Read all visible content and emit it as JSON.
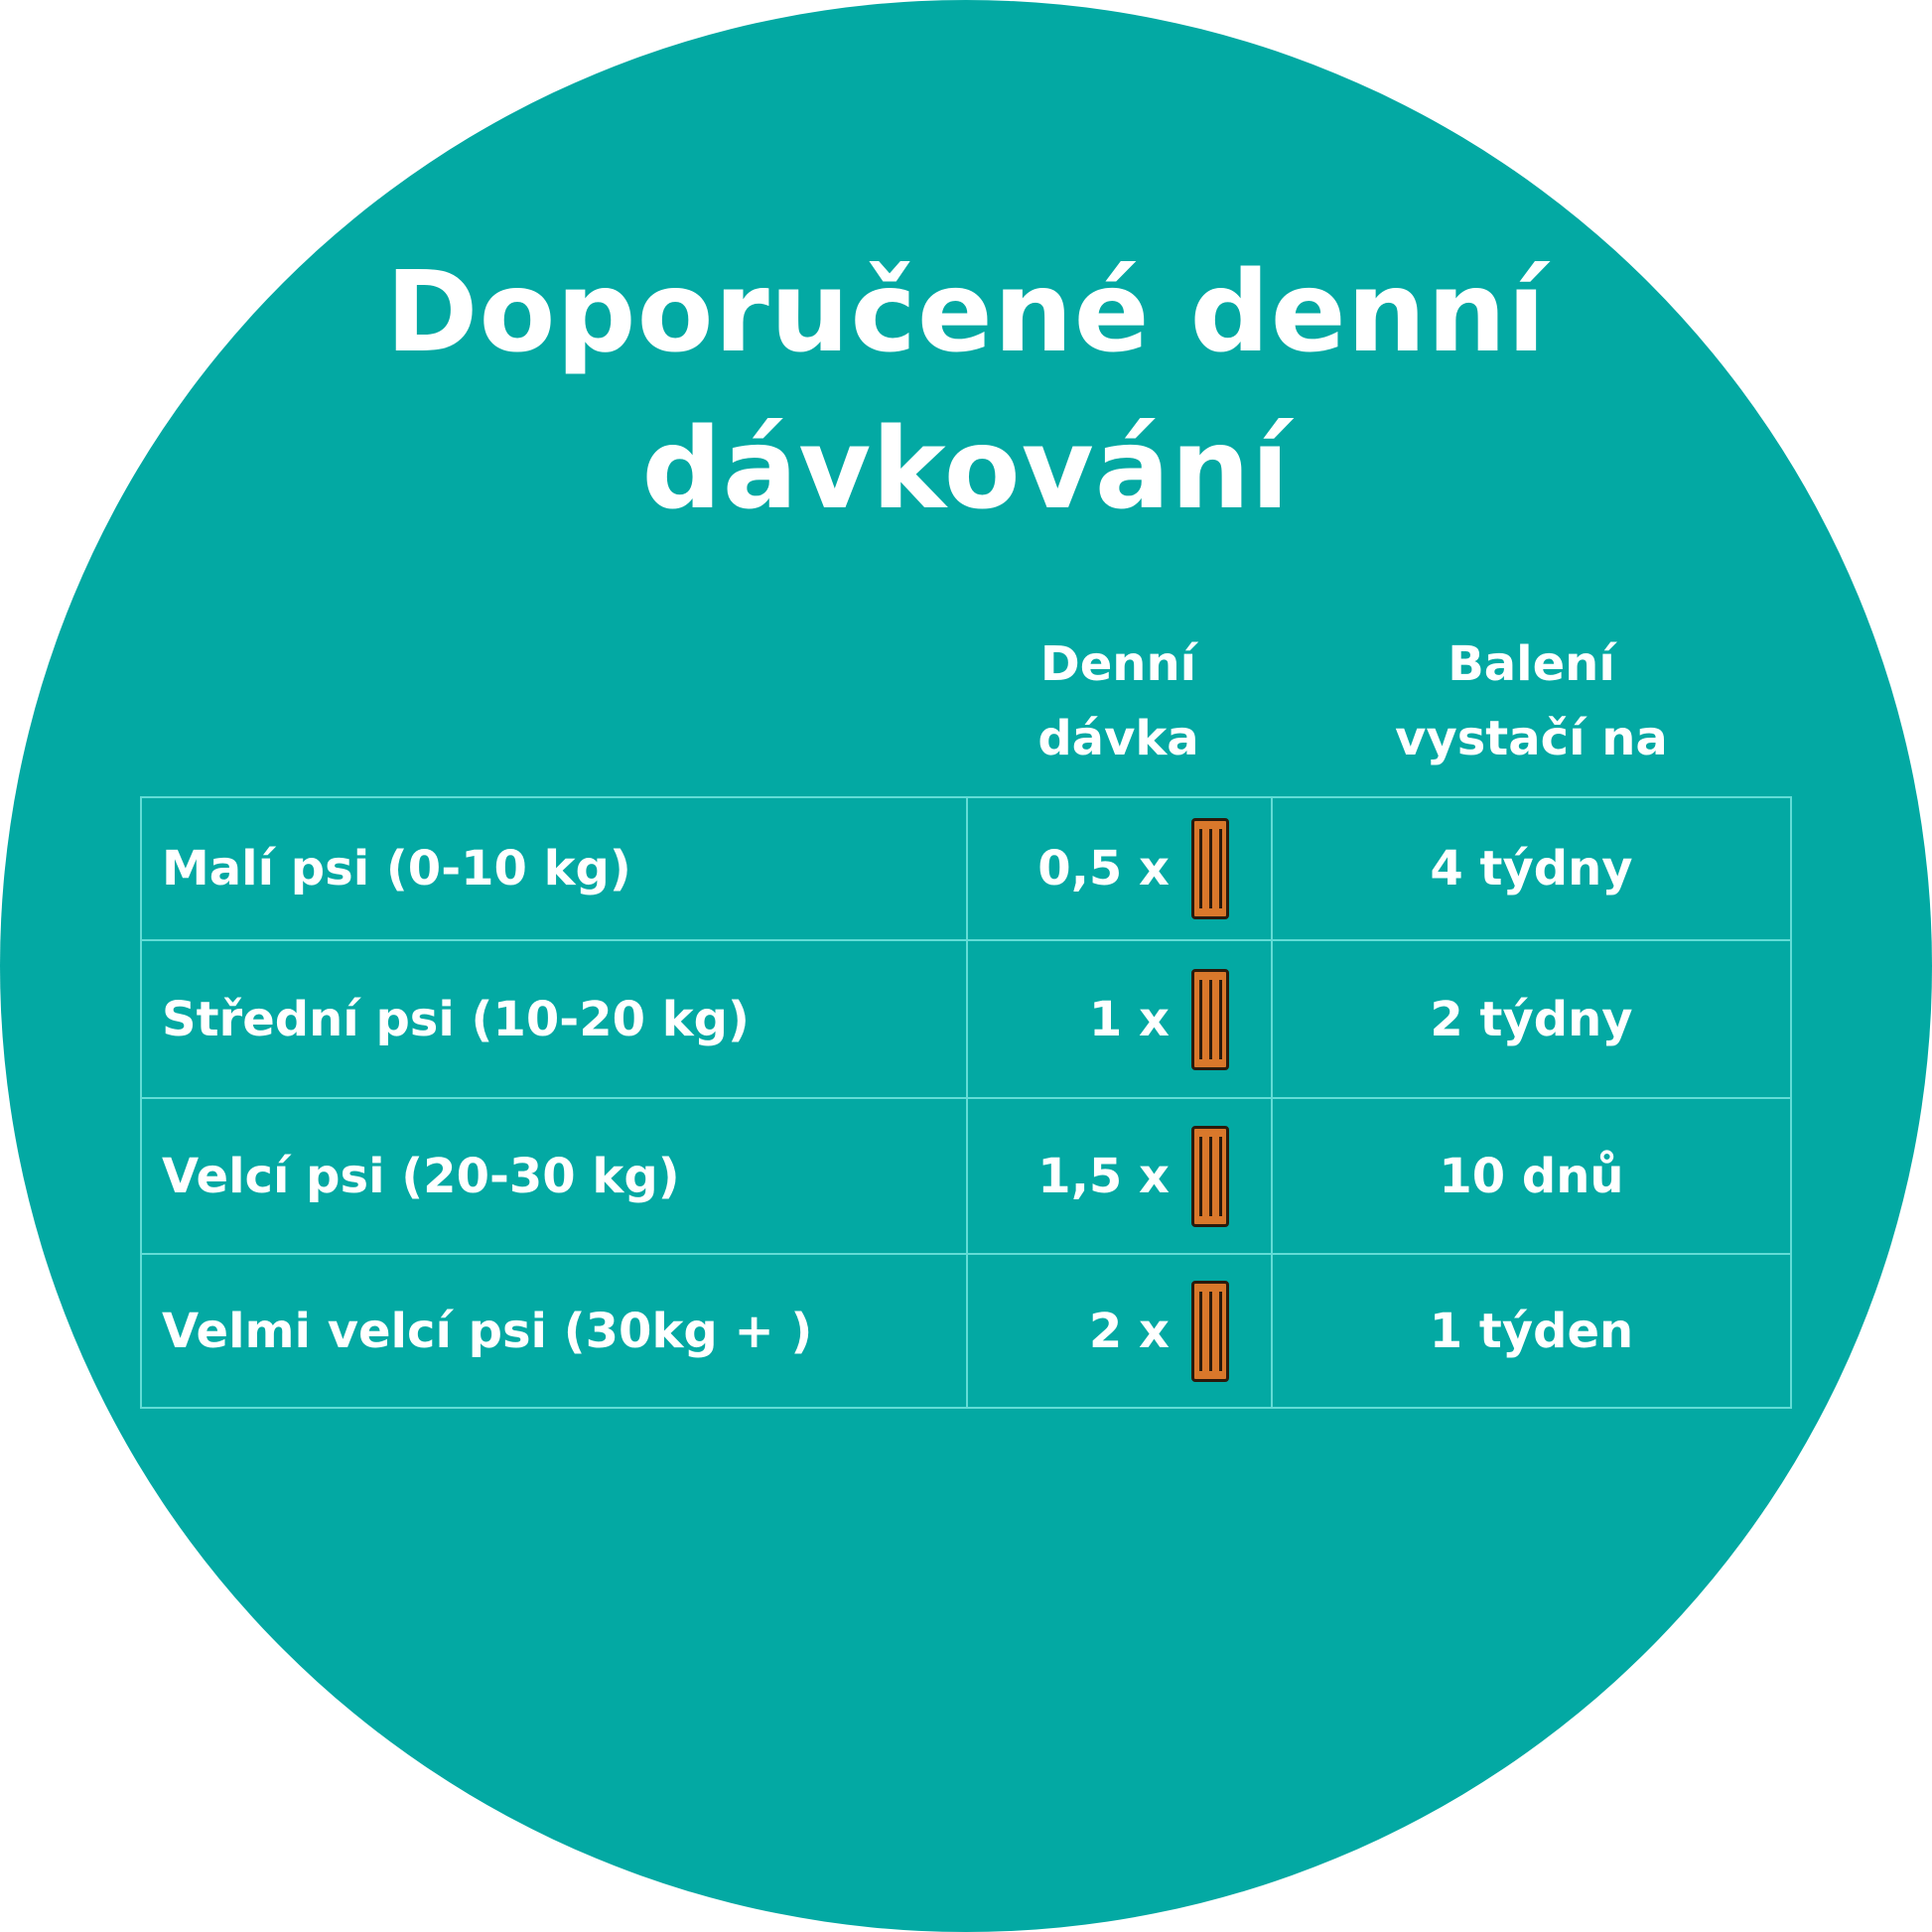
{
  "title": {
    "line1": "Doporučené denní",
    "line2": "dávkování"
  },
  "colors": {
    "background": "#03a9a3",
    "border": "#62dcd6",
    "text": "#ffffff",
    "stick": "#d9782b"
  },
  "headers": {
    "dose_line1": "Denní",
    "dose_line2": "dávka",
    "pack_line1": "Balení",
    "pack_line2": "vystačí na"
  },
  "rows": [
    {
      "category": "Malí psi  (0-10 kg)",
      "dose": "0,5 x",
      "duration": "4 týdny",
      "icon": "dental-stick-icon"
    },
    {
      "category": "Střední psi (10-20 kg)",
      "dose": "1 x",
      "duration": "2 týdny",
      "icon": "dental-stick-icon"
    },
    {
      "category": "Velcí psi (20-30 kg)",
      "dose": "1,5 x",
      "duration": "10 dnů",
      "icon": "dental-stick-icon"
    },
    {
      "category": "Velmi velcí psi (30kg + )",
      "dose": "2 x",
      "duration": "1 týden",
      "icon": "dental-stick-icon"
    }
  ]
}
